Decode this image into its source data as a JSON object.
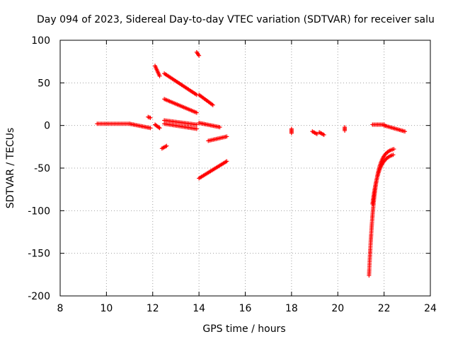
{
  "chart_data": {
    "type": "scatter",
    "title": "Day 094 of 2023, Sidereal Day-to-day VTEC variation (SDTVAR) for receiver salu",
    "xlabel": "GPS time / hours",
    "ylabel": "SDTVAR / TECUs",
    "xlim": [
      8,
      24
    ],
    "ylim": [
      -200,
      100
    ],
    "xticks": [
      "8",
      "10",
      "12",
      "14",
      "16",
      "18",
      "20",
      "22",
      "24"
    ],
    "yticks": [
      "-200",
      "-150",
      "-100",
      "-50",
      "0",
      "50",
      "100"
    ],
    "grid": true,
    "marker": "+",
    "color": "#ff0000",
    "segments": [
      {
        "x0": 9.6,
        "y0": 2,
        "x1": 11.0,
        "y1": 2
      },
      {
        "x0": 11.0,
        "y0": 2,
        "x1": 11.9,
        "y1": -3
      },
      {
        "x0": 11.8,
        "y0": 10,
        "x1": 11.9,
        "y1": 9
      },
      {
        "x0": 12.1,
        "y0": 1,
        "x1": 12.3,
        "y1": -3
      },
      {
        "x0": 12.1,
        "y0": 70,
        "x1": 12.3,
        "y1": 58
      },
      {
        "x0": 12.5,
        "y0": 61,
        "x1": 13.9,
        "y1": 36
      },
      {
        "x0": 12.5,
        "y0": 31,
        "x1": 13.9,
        "y1": 15
      },
      {
        "x0": 12.5,
        "y0": 6,
        "x1": 13.9,
        "y1": 1
      },
      {
        "x0": 12.5,
        "y0": 2,
        "x1": 13.9,
        "y1": -4
      },
      {
        "x0": 12.4,
        "y0": -27,
        "x1": 12.6,
        "y1": -24
      },
      {
        "x0": 13.9,
        "y0": 86,
        "x1": 14.0,
        "y1": 82
      },
      {
        "x0": 14.0,
        "y0": 36,
        "x1": 14.6,
        "y1": 24
      },
      {
        "x0": 14.0,
        "y0": 3,
        "x1": 14.9,
        "y1": -2
      },
      {
        "x0": 14.0,
        "y0": -62,
        "x1": 15.2,
        "y1": -42
      },
      {
        "x0": 14.4,
        "y0": -18,
        "x1": 15.2,
        "y1": -13
      },
      {
        "x0": 18.0,
        "y0": -4,
        "x1": 18.0,
        "y1": -9
      },
      {
        "x0": 18.9,
        "y0": -7,
        "x1": 19.1,
        "y1": -10
      },
      {
        "x0": 19.2,
        "y0": -8,
        "x1": 19.4,
        "y1": -11
      },
      {
        "x0": 20.3,
        "y0": -2,
        "x1": 20.3,
        "y1": -6
      },
      {
        "x0": 21.5,
        "y0": 1,
        "x1": 22.0,
        "y1": 1
      },
      {
        "x0": 22.0,
        "y0": 0,
        "x1": 22.9,
        "y1": -7
      }
    ],
    "curves": [
      {
        "t0": 21.35,
        "t1": 22.45,
        "base": -26,
        "amp": -150,
        "rate": 4.2
      },
      {
        "t0": 21.5,
        "t1": 22.45,
        "base": -32,
        "amp": -60,
        "rate": 3.6
      }
    ]
  }
}
